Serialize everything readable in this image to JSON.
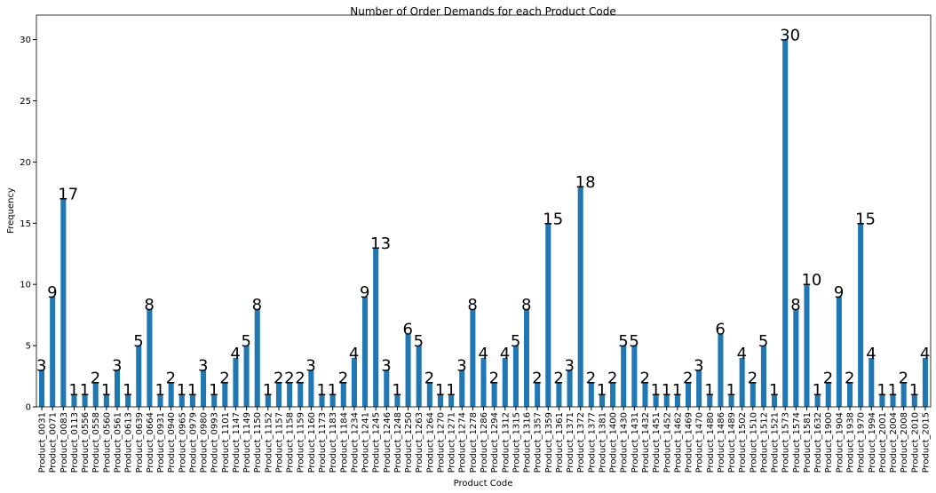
{
  "chart_data": {
    "type": "bar",
    "title": "Number of Order Demands for each Product Code",
    "x_label": "Product Code",
    "y_label": "Frequency",
    "color": "#1f77b4",
    "categories": [
      "Product_0031",
      "Product_0071",
      "Product_0083",
      "Product_0113",
      "Product_0556",
      "Product_0558",
      "Product_0560",
      "Product_0561",
      "Product_0613",
      "Product_0639",
      "Product_0664",
      "Product_0931",
      "Product_0940",
      "Product_0965",
      "Product_0979",
      "Product_0980",
      "Product_0993",
      "Product_1101",
      "Product_1147",
      "Product_1149",
      "Product_1150",
      "Product_1152",
      "Product_1157",
      "Product_1158",
      "Product_1159",
      "Product_1160",
      "Product_1173",
      "Product_1183",
      "Product_1184",
      "Product_1234",
      "Product_1241",
      "Product_1245",
      "Product_1246",
      "Product_1248",
      "Product_1250",
      "Product_1263",
      "Product_1264",
      "Product_1270",
      "Product_1271",
      "Product_1274",
      "Product_1278",
      "Product_1286",
      "Product_1294",
      "Product_1312",
      "Product_1315",
      "Product_1316",
      "Product_1357",
      "Product_1359",
      "Product_1361",
      "Product_1371",
      "Product_1372",
      "Product_1377",
      "Product_1381",
      "Product_1400",
      "Product_1430",
      "Product_1431",
      "Product_1432",
      "Product_1451",
      "Product_1452",
      "Product_1462",
      "Product_1469",
      "Product_1470",
      "Product_1480",
      "Product_1486",
      "Product_1489",
      "Product_1502",
      "Product_1510",
      "Product_1512",
      "Product_1521",
      "Product_1573",
      "Product_1574",
      "Product_1581",
      "Product_1632",
      "Product_1900",
      "Product_1904",
      "Product_1938",
      "Product_1970",
      "Product_1994",
      "Product_2001",
      "Product_2004",
      "Product_2008",
      "Product_2010",
      "Product_2015"
    ],
    "values": [
      3,
      9,
      17,
      1,
      1,
      2,
      1,
      3,
      1,
      5,
      8,
      1,
      2,
      1,
      1,
      3,
      1,
      2,
      4,
      5,
      8,
      1,
      2,
      2,
      2,
      3,
      1,
      1,
      2,
      4,
      9,
      13,
      3,
      1,
      6,
      5,
      2,
      1,
      1,
      3,
      8,
      4,
      2,
      4,
      5,
      8,
      2,
      15,
      2,
      3,
      18,
      2,
      1,
      2,
      5,
      5,
      2,
      1,
      1,
      1,
      2,
      3,
      1,
      6,
      1,
      4,
      2,
      5,
      1,
      30,
      8,
      10,
      1,
      2,
      9,
      2,
      15,
      4,
      1,
      1,
      2,
      1,
      4
    ],
    "ylim": [
      0,
      32
    ],
    "yticks": [
      0,
      5,
      10,
      15,
      20,
      25,
      30
    ],
    "grid": false
  }
}
